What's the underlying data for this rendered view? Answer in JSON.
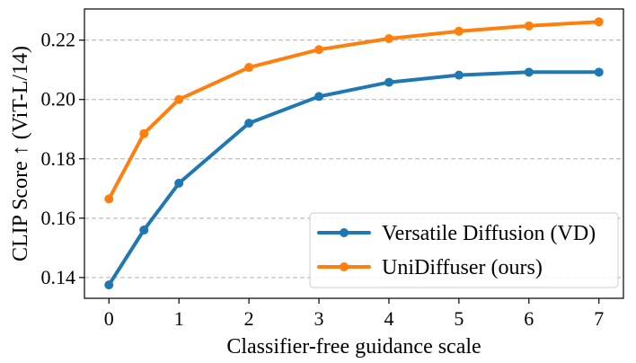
{
  "chart_data": {
    "type": "line",
    "title": "",
    "xlabel": "Classifier-free guidance scale",
    "ylabel": "CLIP Score ↑ (ViT-L/14)",
    "xlim": [
      -0.35,
      7.35
    ],
    "ylim": [
      0.133,
      0.2305
    ],
    "xticks": [
      0,
      1,
      2,
      3,
      4,
      5,
      6,
      7
    ],
    "yticks": [
      0.14,
      0.16,
      0.18,
      0.2,
      0.22
    ],
    "ytick_labels": [
      "0.14",
      "0.16",
      "0.18",
      "0.20",
      "0.22"
    ],
    "grid": "horizontal dashed",
    "legend_position": "lower-right",
    "series": [
      {
        "name": "Versatile Diffusion (VD)",
        "color": "#1f77b4",
        "x": [
          0,
          0.5,
          1,
          2,
          3,
          4,
          5,
          6,
          7
        ],
        "values": [
          0.1375,
          0.156,
          0.1718,
          0.192,
          0.201,
          0.2058,
          0.2082,
          0.2092,
          0.2092
        ]
      },
      {
        "name": "UniDiffuser (ours)",
        "color": "#ff7f0e",
        "x": [
          0,
          0.5,
          1,
          2,
          3,
          4,
          5,
          6,
          7
        ],
        "values": [
          0.1665,
          0.1885,
          0.2,
          0.2108,
          0.2168,
          0.2205,
          0.223,
          0.2248,
          0.2262
        ]
      }
    ]
  }
}
